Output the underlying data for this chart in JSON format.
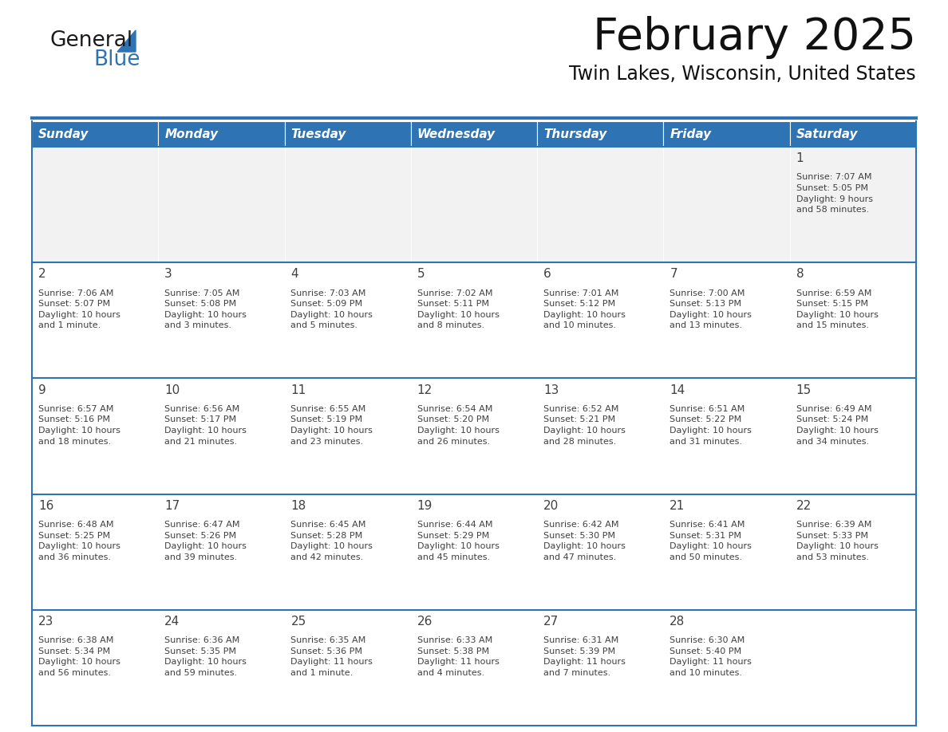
{
  "title": "February 2025",
  "subtitle": "Twin Lakes, Wisconsin, United States",
  "header_bg": "#2E74B5",
  "header_text_color": "#FFFFFF",
  "cell_bg": "#FFFFFF",
  "cell_bg_first_row": "#F2F2F2",
  "separator_color": "#2E74B5",
  "text_color": "#404040",
  "day_number_color": "#2E74B5",
  "day_headers": [
    "Sunday",
    "Monday",
    "Tuesday",
    "Wednesday",
    "Thursday",
    "Friday",
    "Saturday"
  ],
  "calendar_data": [
    [
      {
        "day": "",
        "sunrise": "",
        "sunset": "",
        "daylight": ""
      },
      {
        "day": "",
        "sunrise": "",
        "sunset": "",
        "daylight": ""
      },
      {
        "day": "",
        "sunrise": "",
        "sunset": "",
        "daylight": ""
      },
      {
        "day": "",
        "sunrise": "",
        "sunset": "",
        "daylight": ""
      },
      {
        "day": "",
        "sunrise": "",
        "sunset": "",
        "daylight": ""
      },
      {
        "day": "",
        "sunrise": "",
        "sunset": "",
        "daylight": ""
      },
      {
        "day": "1",
        "sunrise": "Sunrise: 7:07 AM",
        "sunset": "Sunset: 5:05 PM",
        "daylight": "Daylight: 9 hours\nand 58 minutes."
      }
    ],
    [
      {
        "day": "2",
        "sunrise": "Sunrise: 7:06 AM",
        "sunset": "Sunset: 5:07 PM",
        "daylight": "Daylight: 10 hours\nand 1 minute."
      },
      {
        "day": "3",
        "sunrise": "Sunrise: 7:05 AM",
        "sunset": "Sunset: 5:08 PM",
        "daylight": "Daylight: 10 hours\nand 3 minutes."
      },
      {
        "day": "4",
        "sunrise": "Sunrise: 7:03 AM",
        "sunset": "Sunset: 5:09 PM",
        "daylight": "Daylight: 10 hours\nand 5 minutes."
      },
      {
        "day": "5",
        "sunrise": "Sunrise: 7:02 AM",
        "sunset": "Sunset: 5:11 PM",
        "daylight": "Daylight: 10 hours\nand 8 minutes."
      },
      {
        "day": "6",
        "sunrise": "Sunrise: 7:01 AM",
        "sunset": "Sunset: 5:12 PM",
        "daylight": "Daylight: 10 hours\nand 10 minutes."
      },
      {
        "day": "7",
        "sunrise": "Sunrise: 7:00 AM",
        "sunset": "Sunset: 5:13 PM",
        "daylight": "Daylight: 10 hours\nand 13 minutes."
      },
      {
        "day": "8",
        "sunrise": "Sunrise: 6:59 AM",
        "sunset": "Sunset: 5:15 PM",
        "daylight": "Daylight: 10 hours\nand 15 minutes."
      }
    ],
    [
      {
        "day": "9",
        "sunrise": "Sunrise: 6:57 AM",
        "sunset": "Sunset: 5:16 PM",
        "daylight": "Daylight: 10 hours\nand 18 minutes."
      },
      {
        "day": "10",
        "sunrise": "Sunrise: 6:56 AM",
        "sunset": "Sunset: 5:17 PM",
        "daylight": "Daylight: 10 hours\nand 21 minutes."
      },
      {
        "day": "11",
        "sunrise": "Sunrise: 6:55 AM",
        "sunset": "Sunset: 5:19 PM",
        "daylight": "Daylight: 10 hours\nand 23 minutes."
      },
      {
        "day": "12",
        "sunrise": "Sunrise: 6:54 AM",
        "sunset": "Sunset: 5:20 PM",
        "daylight": "Daylight: 10 hours\nand 26 minutes."
      },
      {
        "day": "13",
        "sunrise": "Sunrise: 6:52 AM",
        "sunset": "Sunset: 5:21 PM",
        "daylight": "Daylight: 10 hours\nand 28 minutes."
      },
      {
        "day": "14",
        "sunrise": "Sunrise: 6:51 AM",
        "sunset": "Sunset: 5:22 PM",
        "daylight": "Daylight: 10 hours\nand 31 minutes."
      },
      {
        "day": "15",
        "sunrise": "Sunrise: 6:49 AM",
        "sunset": "Sunset: 5:24 PM",
        "daylight": "Daylight: 10 hours\nand 34 minutes."
      }
    ],
    [
      {
        "day": "16",
        "sunrise": "Sunrise: 6:48 AM",
        "sunset": "Sunset: 5:25 PM",
        "daylight": "Daylight: 10 hours\nand 36 minutes."
      },
      {
        "day": "17",
        "sunrise": "Sunrise: 6:47 AM",
        "sunset": "Sunset: 5:26 PM",
        "daylight": "Daylight: 10 hours\nand 39 minutes."
      },
      {
        "day": "18",
        "sunrise": "Sunrise: 6:45 AM",
        "sunset": "Sunset: 5:28 PM",
        "daylight": "Daylight: 10 hours\nand 42 minutes."
      },
      {
        "day": "19",
        "sunrise": "Sunrise: 6:44 AM",
        "sunset": "Sunset: 5:29 PM",
        "daylight": "Daylight: 10 hours\nand 45 minutes."
      },
      {
        "day": "20",
        "sunrise": "Sunrise: 6:42 AM",
        "sunset": "Sunset: 5:30 PM",
        "daylight": "Daylight: 10 hours\nand 47 minutes."
      },
      {
        "day": "21",
        "sunrise": "Sunrise: 6:41 AM",
        "sunset": "Sunset: 5:31 PM",
        "daylight": "Daylight: 10 hours\nand 50 minutes."
      },
      {
        "day": "22",
        "sunrise": "Sunrise: 6:39 AM",
        "sunset": "Sunset: 5:33 PM",
        "daylight": "Daylight: 10 hours\nand 53 minutes."
      }
    ],
    [
      {
        "day": "23",
        "sunrise": "Sunrise: 6:38 AM",
        "sunset": "Sunset: 5:34 PM",
        "daylight": "Daylight: 10 hours\nand 56 minutes."
      },
      {
        "day": "24",
        "sunrise": "Sunrise: 6:36 AM",
        "sunset": "Sunset: 5:35 PM",
        "daylight": "Daylight: 10 hours\nand 59 minutes."
      },
      {
        "day": "25",
        "sunrise": "Sunrise: 6:35 AM",
        "sunset": "Sunset: 5:36 PM",
        "daylight": "Daylight: 11 hours\nand 1 minute."
      },
      {
        "day": "26",
        "sunrise": "Sunrise: 6:33 AM",
        "sunset": "Sunset: 5:38 PM",
        "daylight": "Daylight: 11 hours\nand 4 minutes."
      },
      {
        "day": "27",
        "sunrise": "Sunrise: 6:31 AM",
        "sunset": "Sunset: 5:39 PM",
        "daylight": "Daylight: 11 hours\nand 7 minutes."
      },
      {
        "day": "28",
        "sunrise": "Sunrise: 6:30 AM",
        "sunset": "Sunset: 5:40 PM",
        "daylight": "Daylight: 11 hours\nand 10 minutes."
      },
      {
        "day": "",
        "sunrise": "",
        "sunset": "",
        "daylight": ""
      }
    ]
  ],
  "logo_general_color": "#1a1a1a",
  "logo_blue_color": "#2E74B5",
  "logo_triangle_color": "#2E74B5"
}
